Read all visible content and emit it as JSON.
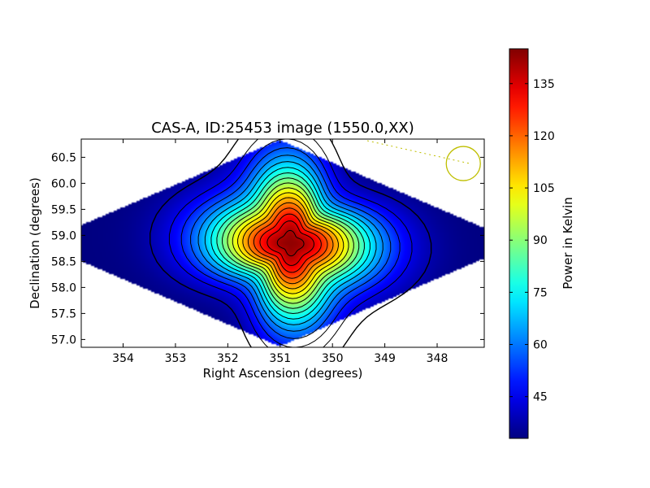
{
  "chart_data": {
    "type": "heatmap",
    "title": "CAS-A, ID:25453 image (1550.0,XX)",
    "xlabel": "Right Ascension (degrees)",
    "ylabel": "Declination (degrees)",
    "xlim": [
      354.8,
      347.1
    ],
    "ylim": [
      56.85,
      60.85
    ],
    "x_ticks": [
      354,
      353,
      352,
      351,
      350,
      349,
      348
    ],
    "x_tick_labels": [
      "354",
      "353",
      "352",
      "351",
      "350",
      "349",
      "348"
    ],
    "y_ticks": [
      57.0,
      57.5,
      58.0,
      58.5,
      59.0,
      59.5,
      60.0,
      60.5
    ],
    "y_tick_labels": [
      "57.0",
      "57.5",
      "58.0",
      "58.5",
      "59.0",
      "59.5",
      "60.0",
      "60.5"
    ],
    "peak": {
      "ra": 350.8,
      "dec": 58.85,
      "value": 143
    },
    "background_value": 33,
    "contour_levels": [
      38,
      44,
      50,
      56,
      62,
      68,
      74,
      80,
      86,
      92,
      98,
      104,
      110,
      116,
      122,
      128,
      134,
      140
    ],
    "beam_marker": {
      "ra": 347.5,
      "dec": 60.38,
      "color": "#bfbf00"
    },
    "colorbar": {
      "label": "Power in Kelvin",
      "min": 33,
      "max": 145,
      "ticks": [
        45,
        60,
        75,
        90,
        105,
        120,
        135
      ],
      "tick_labels": [
        "45",
        "60",
        "75",
        "90",
        "105",
        "120",
        "135"
      ],
      "colormap": "jet"
    }
  }
}
